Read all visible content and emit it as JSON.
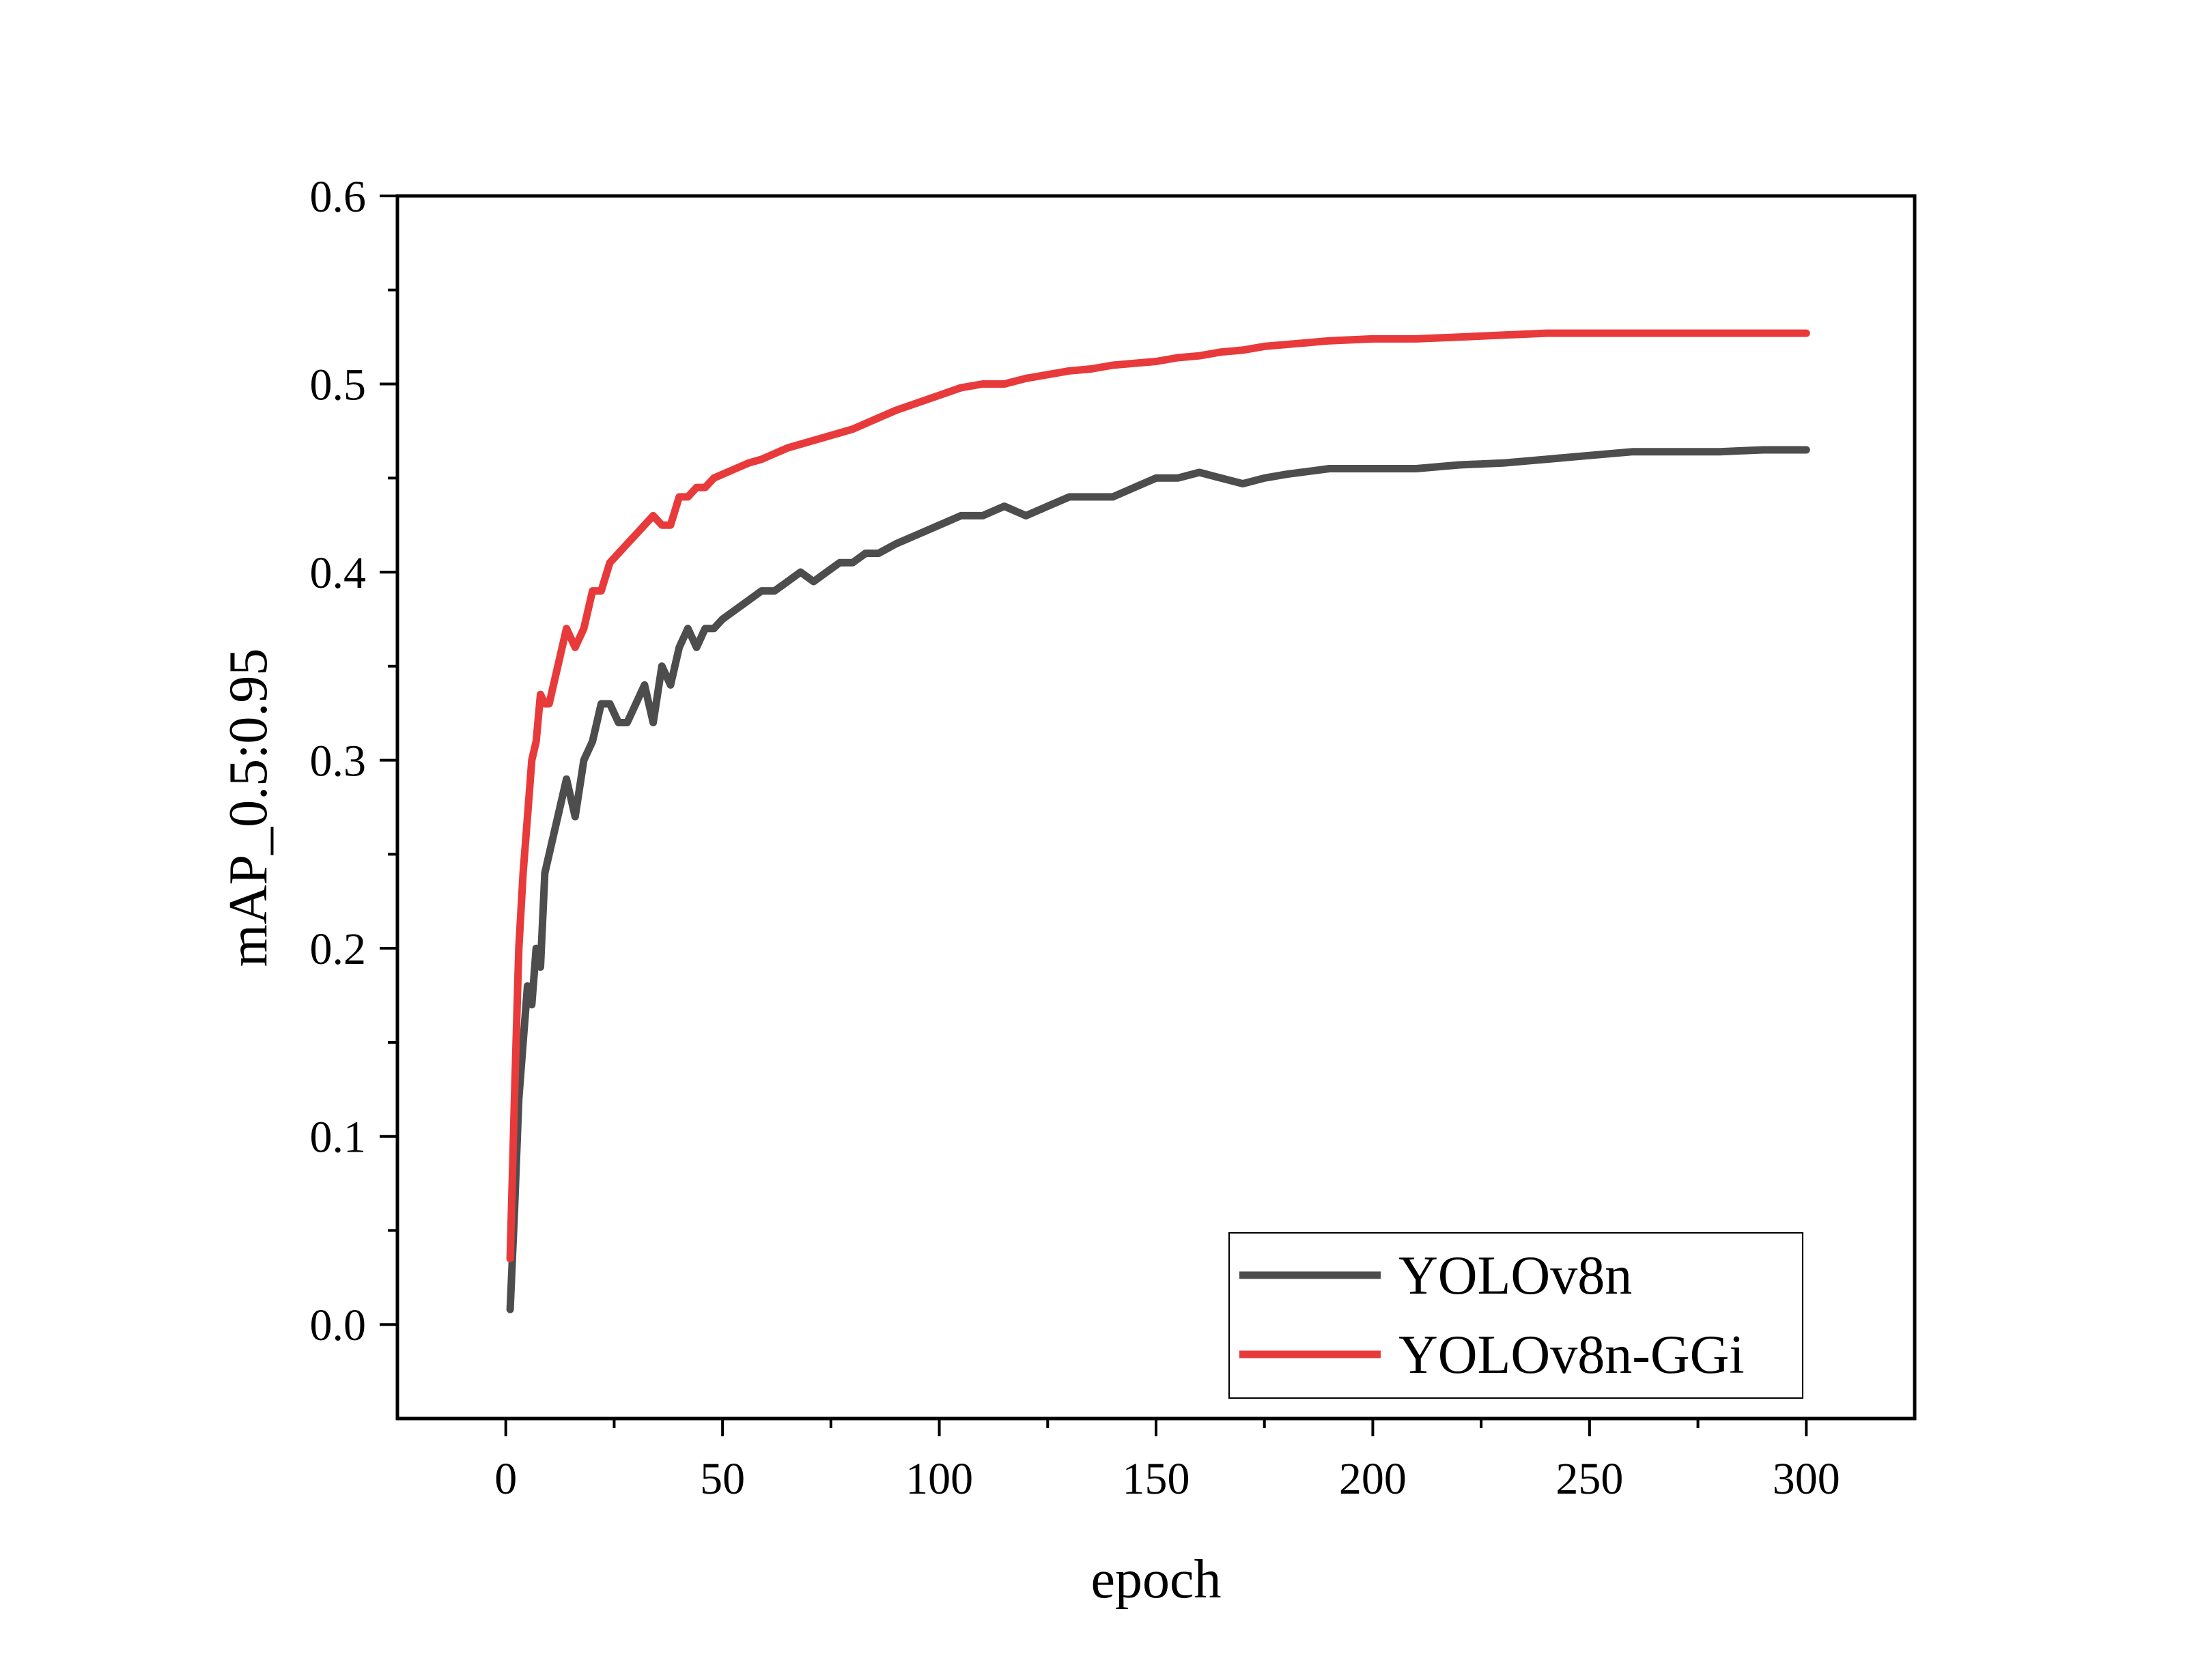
{
  "chart_data": {
    "type": "line",
    "xlabel": "epoch",
    "ylabel": "mAP_0.5:0.95",
    "xlim": [
      -25,
      325
    ],
    "ylim": [
      -0.05,
      0.6
    ],
    "x_ticks": [
      0,
      50,
      100,
      150,
      200,
      250,
      300
    ],
    "x_tick_labels": [
      "0",
      "50",
      "100",
      "150",
      "200",
      "250",
      "300"
    ],
    "y_ticks": [
      0.0,
      0.1,
      0.2,
      0.3,
      0.4,
      0.5,
      0.6
    ],
    "y_tick_labels": [
      "0.0",
      "0.1",
      "0.2",
      "0.3",
      "0.4",
      "0.5",
      "0.6"
    ],
    "grid": false,
    "legend_position": "bottom-right",
    "series": [
      {
        "name": "YOLOv8n",
        "color": "#4d4d4d",
        "x": [
          1,
          2,
          3,
          4,
          5,
          6,
          7,
          8,
          9,
          10,
          12,
          14,
          16,
          18,
          20,
          22,
          24,
          26,
          28,
          30,
          32,
          34,
          36,
          38,
          40,
          42,
          44,
          46,
          48,
          50,
          53,
          56,
          59,
          62,
          65,
          68,
          71,
          74,
          77,
          80,
          83,
          86,
          90,
          95,
          100,
          105,
          110,
          115,
          120,
          125,
          130,
          135,
          140,
          145,
          150,
          155,
          160,
          165,
          170,
          175,
          180,
          190,
          200,
          210,
          220,
          230,
          240,
          250,
          260,
          270,
          280,
          290,
          300
        ],
        "y": [
          0.008,
          0.06,
          0.12,
          0.15,
          0.18,
          0.17,
          0.2,
          0.19,
          0.24,
          0.25,
          0.27,
          0.29,
          0.27,
          0.3,
          0.31,
          0.33,
          0.33,
          0.32,
          0.32,
          0.33,
          0.34,
          0.32,
          0.35,
          0.34,
          0.36,
          0.37,
          0.36,
          0.37,
          0.37,
          0.375,
          0.38,
          0.385,
          0.39,
          0.39,
          0.395,
          0.4,
          0.395,
          0.4,
          0.405,
          0.405,
          0.41,
          0.41,
          0.415,
          0.42,
          0.425,
          0.43,
          0.43,
          0.435,
          0.43,
          0.435,
          0.44,
          0.44,
          0.44,
          0.445,
          0.45,
          0.45,
          0.453,
          0.45,
          0.447,
          0.45,
          0.452,
          0.455,
          0.455,
          0.455,
          0.457,
          0.458,
          0.46,
          0.462,
          0.464,
          0.464,
          0.464,
          0.465,
          0.465
        ]
      },
      {
        "name": "YOLOv8n-GGi",
        "color": "#e83a3a",
        "x": [
          1,
          2,
          3,
          4,
          5,
          6,
          7,
          8,
          9,
          10,
          12,
          14,
          16,
          18,
          20,
          22,
          24,
          26,
          28,
          30,
          32,
          34,
          36,
          38,
          40,
          42,
          44,
          46,
          48,
          50,
          53,
          56,
          59,
          62,
          65,
          68,
          71,
          74,
          77,
          80,
          83,
          86,
          90,
          95,
          100,
          105,
          110,
          115,
          120,
          125,
          130,
          135,
          140,
          145,
          150,
          155,
          160,
          165,
          170,
          175,
          180,
          190,
          200,
          210,
          220,
          230,
          240,
          250,
          260,
          270,
          280,
          290,
          300
        ],
        "y": [
          0.035,
          0.12,
          0.2,
          0.24,
          0.27,
          0.3,
          0.31,
          0.335,
          0.33,
          0.33,
          0.35,
          0.37,
          0.36,
          0.37,
          0.39,
          0.39,
          0.405,
          0.41,
          0.415,
          0.42,
          0.425,
          0.43,
          0.425,
          0.425,
          0.44,
          0.44,
          0.445,
          0.445,
          0.45,
          0.452,
          0.455,
          0.458,
          0.46,
          0.463,
          0.466,
          0.468,
          0.47,
          0.472,
          0.474,
          0.476,
          0.479,
          0.482,
          0.486,
          0.49,
          0.494,
          0.498,
          0.5,
          0.5,
          0.503,
          0.505,
          0.507,
          0.508,
          0.51,
          0.511,
          0.512,
          0.514,
          0.515,
          0.517,
          0.518,
          0.52,
          0.521,
          0.523,
          0.524,
          0.524,
          0.525,
          0.526,
          0.527,
          0.527,
          0.527,
          0.527,
          0.527,
          0.527,
          0.527
        ]
      }
    ]
  }
}
